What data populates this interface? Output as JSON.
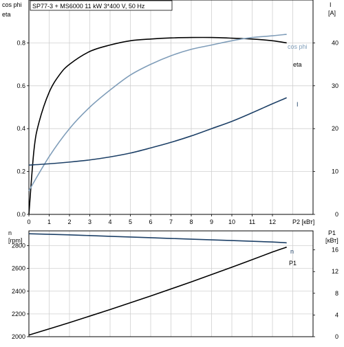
{
  "chart_data": [
    {
      "type": "line",
      "title": "SP77-3 + MS6000   11 kW   3*400 V, 50 Hz",
      "xlabel": "P2 [кВт]",
      "xlim": [
        0,
        14
      ],
      "x_ticks": [
        0,
        1,
        2,
        3,
        4,
        5,
        6,
        7,
        8,
        9,
        10,
        11,
        12
      ],
      "left_axis": {
        "label_line1": "cos phi",
        "label_line2": "eta",
        "lim": [
          0,
          1.0
        ],
        "ticks": [
          0.0,
          0.2,
          0.4,
          0.6,
          0.8
        ]
      },
      "right_axis": {
        "label_line1": "I",
        "label_line2": "[A]",
        "lim": [
          0,
          50
        ],
        "ticks": [
          0,
          10,
          20,
          30,
          40
        ]
      },
      "grid": true,
      "series": [
        {
          "name": "eta",
          "axis": "left",
          "color": "#000000",
          "x": [
            0,
            0.25,
            0.5,
            1,
            1.5,
            2,
            3,
            4,
            5,
            6,
            7,
            8,
            9,
            10,
            11,
            12,
            12.7
          ],
          "y": [
            0,
            0.3,
            0.43,
            0.57,
            0.65,
            0.7,
            0.76,
            0.79,
            0.81,
            0.818,
            0.823,
            0.825,
            0.825,
            0.822,
            0.818,
            0.81,
            0.8
          ]
        },
        {
          "name": "cos phi",
          "axis": "left",
          "color": "#7f9db9",
          "x": [
            0,
            1,
            2,
            3,
            4,
            5,
            6,
            7,
            8,
            9,
            10,
            11,
            12,
            12.7
          ],
          "y": [
            0.11,
            0.27,
            0.4,
            0.5,
            0.58,
            0.65,
            0.7,
            0.74,
            0.77,
            0.79,
            0.81,
            0.825,
            0.833,
            0.84
          ]
        },
        {
          "name": "I",
          "axis": "right",
          "color": "#1c3f66",
          "x": [
            0,
            1,
            2,
            3,
            4,
            5,
            6,
            7,
            8,
            9,
            10,
            11,
            12,
            12.7
          ],
          "y": [
            11.5,
            11.8,
            12.2,
            12.7,
            13.4,
            14.3,
            15.5,
            16.8,
            18.3,
            20,
            21.7,
            23.7,
            25.8,
            27.2
          ]
        }
      ]
    },
    {
      "type": "line",
      "xlim": [
        0,
        14
      ],
      "left_axis": {
        "label_line1": "n",
        "label_line2": "[rpm]",
        "lim": [
          2000,
          2930
        ],
        "ticks": [
          2000,
          2200,
          2400,
          2600,
          2800
        ]
      },
      "right_axis": {
        "label_line1": "P1",
        "label_line2": "[кВт]",
        "lim": [
          0,
          19.5
        ],
        "ticks": [
          0,
          4,
          8,
          12,
          16
        ]
      },
      "grid": true,
      "series": [
        {
          "name": "n",
          "axis": "left",
          "color": "#1c3f66",
          "x": [
            0,
            2,
            4,
            6,
            8,
            10,
            12,
            12.7
          ],
          "y": [
            2905,
            2895,
            2882,
            2870,
            2857,
            2845,
            2832,
            2825
          ]
        },
        {
          "name": "P1",
          "axis": "right",
          "color": "#000000",
          "x": [
            0,
            2,
            4,
            6,
            8,
            10,
            12,
            12.7
          ],
          "y": [
            0.3,
            2.6,
            5.0,
            7.5,
            10.1,
            12.8,
            15.6,
            16.5
          ]
        }
      ]
    }
  ]
}
